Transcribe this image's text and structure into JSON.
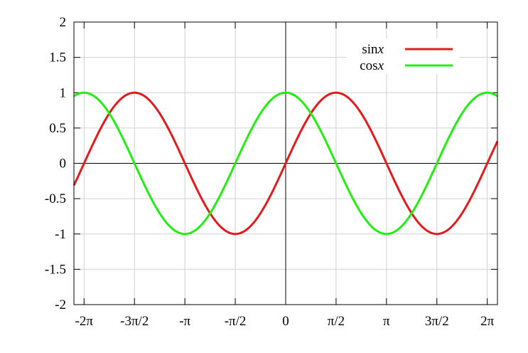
{
  "chart_data": {
    "type": "line",
    "title": "",
    "xlabel": "",
    "ylabel": "",
    "xlim": [
      -6.6,
      6.6
    ],
    "ylim": [
      -2,
      2
    ],
    "grid": true,
    "legend_position": "top-right",
    "x_ticks": [
      {
        "value": -6.283185307,
        "label": "-2π"
      },
      {
        "value": -4.71238898,
        "label": "-3π/2"
      },
      {
        "value": -3.141592654,
        "label": "-π"
      },
      {
        "value": -1.570796327,
        "label": "-π/2"
      },
      {
        "value": 0,
        "label": "0"
      },
      {
        "value": 1.570796327,
        "label": "π/2"
      },
      {
        "value": 3.141592654,
        "label": "π"
      },
      {
        "value": 4.71238898,
        "label": "3π/2"
      },
      {
        "value": 6.283185307,
        "label": "2π"
      }
    ],
    "y_ticks": [
      {
        "value": 2,
        "label": "2"
      },
      {
        "value": 1.5,
        "label": "1.5"
      },
      {
        "value": 1,
        "label": "1"
      },
      {
        "value": 0.5,
        "label": "0.5"
      },
      {
        "value": 0,
        "label": "0"
      },
      {
        "value": -0.5,
        "label": "-0.5"
      },
      {
        "value": -1,
        "label": "-1"
      },
      {
        "value": -1.5,
        "label": "-1.5"
      },
      {
        "value": -2,
        "label": "-2"
      }
    ],
    "series": [
      {
        "name_prefix": "sin",
        "name_var": "x",
        "function": "sin",
        "color": "#e31a1c",
        "x": [
          -6.6,
          -6.28,
          -5.5,
          -4.71,
          -3.93,
          -3.14,
          -2.36,
          -1.57,
          -0.79,
          0,
          0.79,
          1.57,
          2.36,
          3.14,
          3.93,
          4.71,
          5.5,
          6.28,
          6.6
        ],
        "values": [
          -0.31,
          0,
          0.71,
          1,
          0.71,
          0,
          -0.71,
          -1,
          -0.71,
          0,
          0.71,
          1,
          0.71,
          0,
          -0.71,
          -1,
          -0.71,
          0,
          0.31
        ]
      },
      {
        "name_prefix": "cos",
        "name_var": "x",
        "function": "cos",
        "color": "#22ee11",
        "x": [
          -6.6,
          -6.28,
          -5.5,
          -4.71,
          -3.93,
          -3.14,
          -2.36,
          -1.57,
          -0.79,
          0,
          0.79,
          1.57,
          2.36,
          3.14,
          3.93,
          4.71,
          5.5,
          6.28,
          6.6
        ],
        "values": [
          0.95,
          1,
          0.71,
          0,
          -0.71,
          -1,
          -0.71,
          0,
          0.71,
          1,
          0.71,
          0,
          -0.71,
          -1,
          -0.71,
          0,
          0.71,
          1,
          0.95
        ]
      }
    ]
  }
}
